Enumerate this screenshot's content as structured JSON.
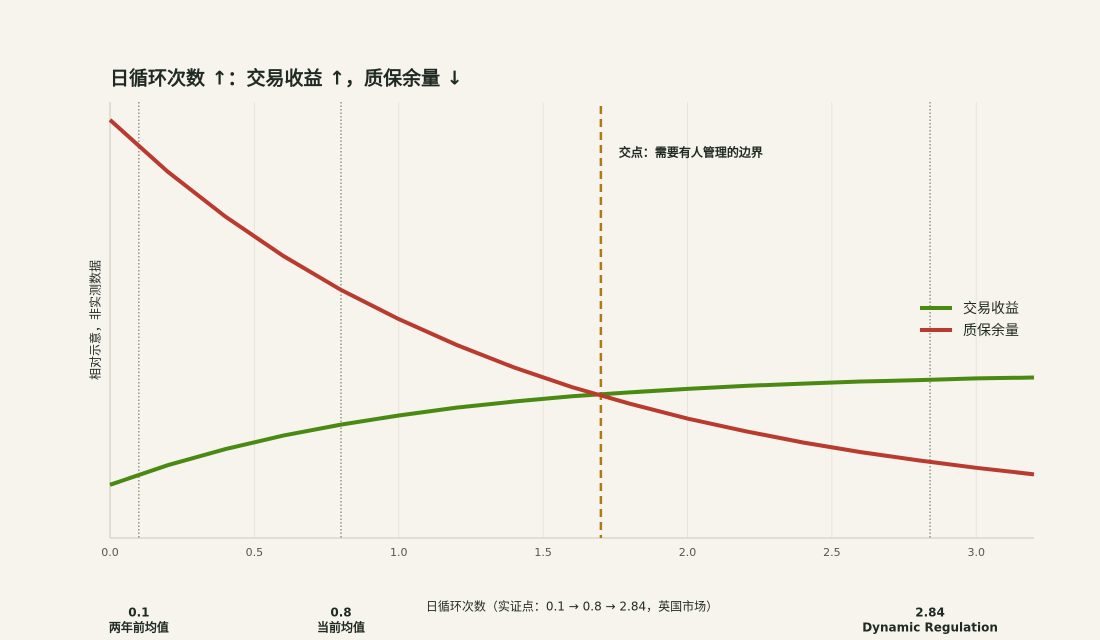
{
  "chart_data": {
    "type": "line",
    "title": "日循环次数 ↑：交易收益 ↑，质保余量 ↓",
    "x_label": "日循环次数（实证点：0.1 → 0.8 → 2.84，英国市场）",
    "y_label": "相对示意，非实测数据",
    "x": [
      0,
      0.2,
      0.4,
      0.6,
      0.8,
      1.0,
      1.2,
      1.4,
      1.6,
      1.8,
      2.0,
      2.2,
      2.4,
      2.6,
      2.8,
      3.0,
      3.2
    ],
    "series": [
      {
        "name": "交易收益",
        "color": "#4a8a12",
        "values": [
          0.122,
          0.167,
          0.204,
          0.235,
          0.26,
          0.281,
          0.299,
          0.313,
          0.325,
          0.334,
          0.342,
          0.349,
          0.354,
          0.359,
          0.362,
          0.366,
          0.368
        ]
      },
      {
        "name": "质保余量",
        "color": "#b93b2e",
        "values": [
          0.959,
          0.84,
          0.737,
          0.647,
          0.569,
          0.502,
          0.443,
          0.391,
          0.346,
          0.308,
          0.274,
          0.245,
          0.219,
          0.197,
          0.178,
          0.161,
          0.146
        ]
      }
    ],
    "xlim": [
      0,
      3.2
    ],
    "ylim": [
      0,
      1
    ],
    "xticks": [
      {
        "value": 0,
        "label": "0.0"
      },
      0.5,
      {
        "value": 1,
        "label": "1.0"
      },
      1.5,
      {
        "value": 2,
        "label": "2.0"
      },
      2.5,
      {
        "value": 3,
        "label": "3.0"
      }
    ],
    "grid": true,
    "legend": "center right",
    "reference_lines": [
      {
        "x": 0.1,
        "label": "两年前均值"
      },
      {
        "x": 0.8,
        "label": "当前均值"
      },
      {
        "x": 2.84,
        "label": "Dynamic Regulation"
      }
    ],
    "crossover": {
      "x": 1.7,
      "label": "交点：需要有人管理的边界",
      "color": "#b07a12"
    }
  }
}
